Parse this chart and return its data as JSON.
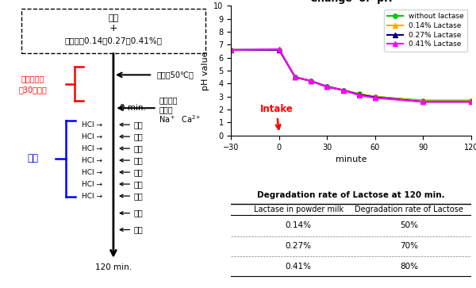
{
  "title": "Change  of  pH",
  "xlabel": "minute",
  "ylabel": "pH value",
  "xlim": [
    -30,
    120
  ],
  "ylim": [
    0,
    10
  ],
  "xticks": [
    -30,
    0,
    30,
    60,
    90,
    120
  ],
  "yticks": [
    0,
    1,
    2,
    3,
    4,
    5,
    6,
    7,
    8,
    9,
    10
  ],
  "lines": {
    "without_lactase": {
      "x": [
        -30,
        0,
        10,
        20,
        30,
        40,
        50,
        60,
        90,
        120
      ],
      "y": [
        6.6,
        6.6,
        4.5,
        4.2,
        3.8,
        3.5,
        3.2,
        3.0,
        2.7,
        2.7
      ],
      "color": "#00cc00",
      "marker": "o",
      "label": "without lactase"
    },
    "lactase_014": {
      "x": [
        -30,
        0,
        10,
        20,
        30,
        40,
        50,
        60,
        90,
        120
      ],
      "y": [
        6.6,
        6.6,
        4.5,
        4.2,
        3.75,
        3.5,
        3.2,
        3.0,
        2.65,
        2.65
      ],
      "color": "#ffaa00",
      "marker": "^",
      "label": "0.14% Lactase"
    },
    "lactase_027": {
      "x": [
        -30,
        0,
        10,
        20,
        30,
        40,
        50,
        60,
        90,
        120
      ],
      "y": [
        6.6,
        6.6,
        4.5,
        4.2,
        3.75,
        3.5,
        3.15,
        2.95,
        2.6,
        2.6
      ],
      "color": "#000080",
      "marker": "^",
      "label": "0.27% Lactase"
    },
    "lactase_041": {
      "x": [
        -30,
        0,
        10,
        20,
        30,
        40,
        50,
        60,
        90,
        120
      ],
      "y": [
        6.6,
        6.65,
        4.5,
        4.2,
        3.75,
        3.5,
        3.1,
        2.9,
        2.6,
        2.6
      ],
      "color": "#ff00ff",
      "marker": "^",
      "label": "0.41% Lactase"
    }
  },
  "intake_label": "Intake",
  "intake_color": "red",
  "table_title": "Degradation rate of Lactose at 120 min.",
  "table_col1": "Lactase in powder milk",
  "table_col2": "Degradation rate of Lactose",
  "table_rows": [
    [
      "0.14%",
      "50%"
    ],
    [
      "0.27%",
      "70%"
    ],
    [
      "0.41%",
      "80%"
    ]
  ]
}
